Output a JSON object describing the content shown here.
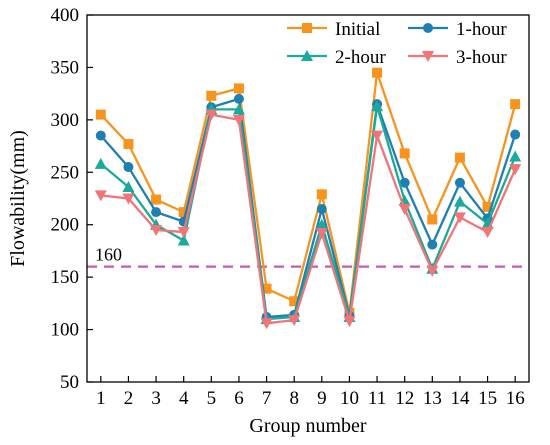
{
  "chart_data": {
    "type": "line",
    "title": "",
    "xlabel": "Group number",
    "ylabel": "Flowability(mm)",
    "x": [
      1,
      2,
      3,
      4,
      5,
      6,
      7,
      8,
      9,
      10,
      11,
      12,
      13,
      14,
      15,
      16
    ],
    "xlim": [
      0.5,
      16.5
    ],
    "ylim": [
      50,
      400
    ],
    "yticks": [
      50,
      100,
      150,
      200,
      250,
      300,
      350,
      400
    ],
    "grid": false,
    "legend_position": "top-right",
    "reference_line": {
      "value": 160,
      "label": "160",
      "color": "#c85aa7",
      "style": "dashed"
    },
    "series": [
      {
        "name": "Initial",
        "color": "#f7941d",
        "marker": "square",
        "values": [
          305,
          277,
          224,
          212,
          323,
          330,
          139,
          127,
          229,
          116,
          345,
          268,
          205,
          264,
          217,
          315
        ]
      },
      {
        "name": "1-hour",
        "color": "#1f7fb3",
        "marker": "circle",
        "values": [
          285,
          255,
          212,
          203,
          312,
          320,
          112,
          114,
          215,
          113,
          315,
          240,
          181,
          240,
          206,
          286
        ]
      },
      {
        "name": "2-hour",
        "color": "#1aaa9a",
        "marker": "triangle-up",
        "values": [
          258,
          236,
          200,
          185,
          310,
          310,
          110,
          112,
          200,
          112,
          313,
          223,
          158,
          222,
          201,
          265
        ]
      },
      {
        "name": "3-hour",
        "color": "#f07478",
        "marker": "triangle-down",
        "values": [
          228,
          225,
          195,
          193,
          305,
          300,
          106,
          109,
          192,
          108,
          285,
          215,
          156,
          207,
          193,
          253
        ]
      }
    ]
  }
}
